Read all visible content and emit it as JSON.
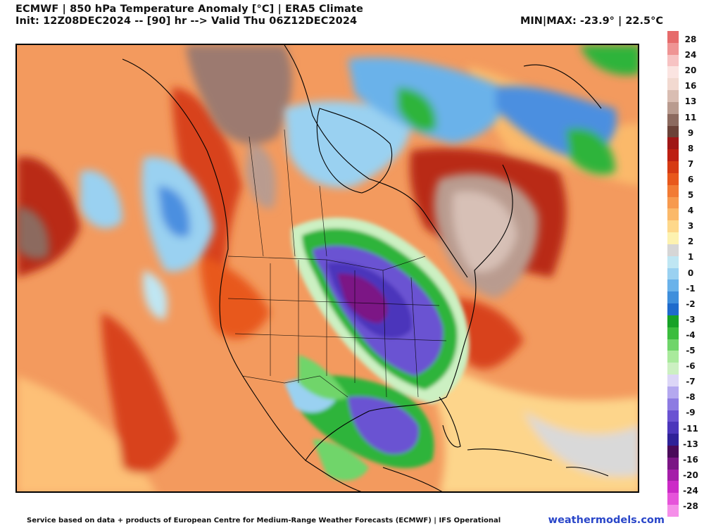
{
  "header": {
    "title": "ECMWF | 850 hPa Temperature Anomaly [°C] | ERA5 Climate",
    "init": "Init: 12Z08DEC2024 -- [90] hr --> Valid Thu 06Z12DEC2024",
    "minmax": "MIN|MAX: -23.9° | 22.5°C"
  },
  "footer": {
    "credit": "Service based on data + products of European Centre for Medium-Range Weather Forecasts (ECMWF) | IFS Operational",
    "site": "weathermodels.com"
  },
  "colorbar": {
    "labels": [
      "28",
      "24",
      "20",
      "16",
      "13",
      "11",
      "9",
      "8",
      "7",
      "6",
      "5",
      "4",
      "3",
      "2",
      "1",
      "0",
      "-1",
      "-2",
      "-3",
      "-4",
      "-5",
      "-6",
      "-7",
      "-8",
      "-9",
      "-11",
      "-13",
      "-16",
      "-20",
      "-24",
      "-28"
    ],
    "colors": [
      "#e66b6b",
      "#ef9494",
      "#f7c3c3",
      "#fbe4e1",
      "#f2d9d0",
      "#d9bdb2",
      "#b99b8f",
      "#8c6a5f",
      "#6b4238",
      "#a01616",
      "#bd1f12",
      "#d63a13",
      "#e8581c",
      "#f27b34",
      "#f79a4e",
      "#fbb96a",
      "#fed88b",
      "#fdf2b0",
      "#d6d6d6",
      "#bfe6f3",
      "#9ad1f1",
      "#6ab2ea",
      "#3f8fdc",
      "#1f6bcc",
      "#17a227",
      "#3bbd3d",
      "#6fd56a",
      "#a9ea9c",
      "#ccf0c2",
      "#dcd6f7",
      "#b4a8ef",
      "#8d7be2",
      "#6a53d2",
      "#4b36bb",
      "#2f2198",
      "#4a0a5a",
      "#7b1585",
      "#a51ea9",
      "#cc2ac7",
      "#e654da",
      "#f58fe9"
    ]
  },
  "map": {
    "palette": {
      "land-outline": "#000000",
      "warm-base": "#f39a5e",
      "warm-strong": "#d8431a",
      "very-warm": "#a01616",
      "hot-brown": "#9c7a70",
      "cold-light": "#9ad1f1",
      "cold-mid": "#4b8fe0",
      "cold-green": "#2fb43a",
      "cold-violet": "#6a53d2",
      "cold-deep": "#7b1585",
      "neutral": "#d9d9d9",
      "pale": "#fdd98d"
    }
  }
}
